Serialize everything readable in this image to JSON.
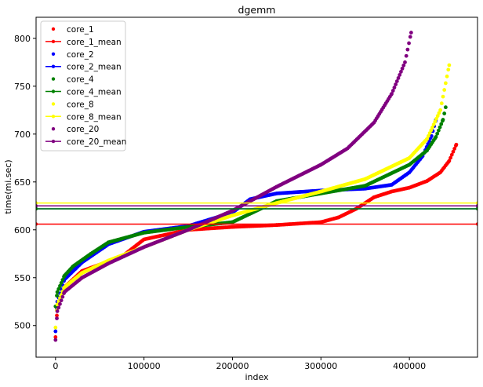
{
  "chart_data": {
    "type": "scatter",
    "title": "dgemm",
    "xlabel": "index",
    "ylabel": "time(mi.sec)",
    "xlim": [
      -22000,
      477000
    ],
    "ylim": [
      467,
      822
    ],
    "xticks": [
      0,
      100000,
      200000,
      300000,
      400000
    ],
    "xtick_labels": [
      "0",
      "100000",
      "200000",
      "300000",
      "400000"
    ],
    "yticks": [
      500,
      550,
      600,
      650,
      700,
      750,
      800
    ],
    "ytick_labels": [
      "500",
      "550",
      "600",
      "650",
      "700",
      "750",
      "800"
    ],
    "grid": false,
    "legend_position": "top-left",
    "series": [
      {
        "name": "core_1",
        "color": "#ff0000",
        "x": [
          0,
          2000,
          10000,
          30000,
          60000,
          75000,
          100000,
          150000,
          200000,
          250000,
          300000,
          320000,
          340000,
          360000,
          380000,
          400000,
          420000,
          435000,
          445000,
          453000
        ],
        "y": [
          488,
          518,
          540,
          557,
          567,
          572,
          590,
          600,
          603,
          605,
          608,
          613,
          622,
          634,
          640,
          644,
          651,
          660,
          672,
          689
        ]
      },
      {
        "name": "core_1_mean",
        "color": "#ff0000",
        "value": 606
      },
      {
        "name": "core_2",
        "color": "#0000ff",
        "x": [
          0,
          2000,
          10000,
          30000,
          60000,
          100000,
          150000,
          200000,
          210000,
          220000,
          250000,
          300000,
          350000,
          380000,
          400000,
          415000,
          425000,
          430000
        ],
        "y": [
          494,
          525,
          548,
          566,
          585,
          598,
          604,
          618,
          625,
          632,
          638,
          641,
          643,
          647,
          660,
          677,
          698,
          715
        ]
      },
      {
        "name": "core_2_mean",
        "color": "#0000ff",
        "value": 622
      },
      {
        "name": "core_4",
        "color": "#008000",
        "x": [
          0,
          2000,
          10000,
          20000,
          40000,
          60000,
          100000,
          150000,
          200000,
          250000,
          300000,
          350000,
          400000,
          420000,
          430000,
          438000,
          441000
        ],
        "y": [
          520,
          535,
          552,
          562,
          575,
          587,
          597,
          603,
          608,
          630,
          638,
          646,
          668,
          683,
          697,
          715,
          728
        ]
      },
      {
        "name": "core_4_mean",
        "color": "#008000",
        "value": 622
      },
      {
        "name": "core_8",
        "color": "#ffff00",
        "x": [
          0,
          2000,
          10000,
          30000,
          60000,
          100000,
          150000,
          200000,
          250000,
          300000,
          350000,
          400000,
          420000,
          435000,
          445000
        ],
        "y": [
          498,
          522,
          540,
          555,
          568,
          582,
          600,
          615,
          628,
          640,
          653,
          675,
          695,
          725,
          772
        ]
      },
      {
        "name": "core_8_mean",
        "color": "#ffff00",
        "value": 628
      },
      {
        "name": "core_20",
        "color": "#800080",
        "x": [
          0,
          2000,
          10000,
          30000,
          60000,
          100000,
          150000,
          200000,
          250000,
          300000,
          330000,
          360000,
          380000,
          395000,
          402000
        ],
        "y": [
          485,
          515,
          535,
          550,
          565,
          582,
          600,
          620,
          645,
          668,
          685,
          712,
          742,
          775,
          806
        ]
      },
      {
        "name": "core_20_mean",
        "color": "#800080",
        "value": 625
      }
    ]
  }
}
